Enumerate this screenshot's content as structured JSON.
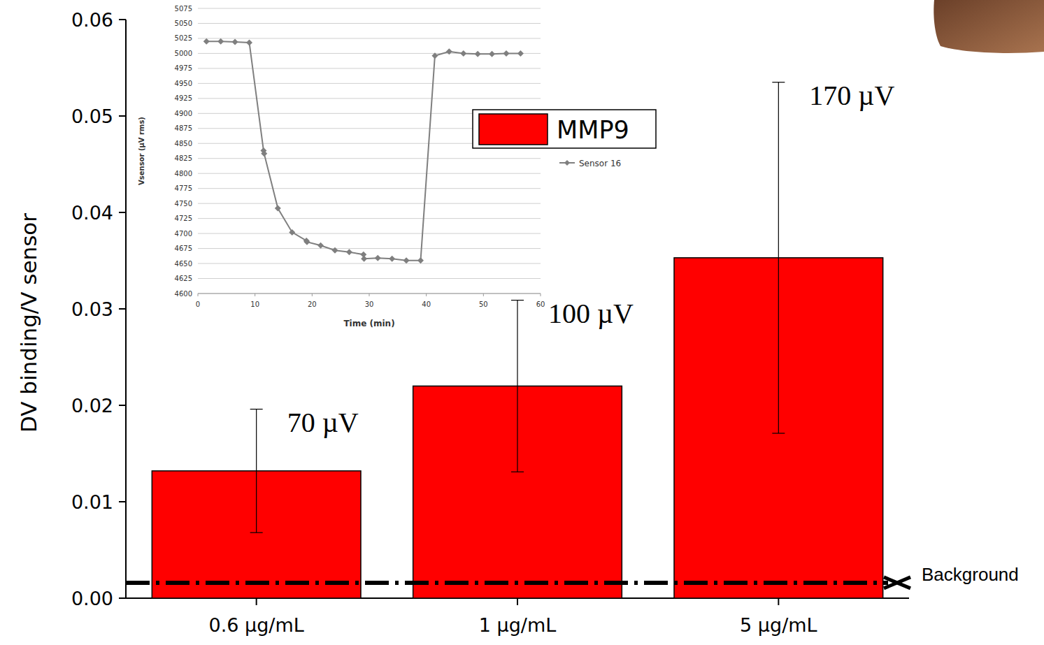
{
  "chart_data": [
    {
      "type": "bar",
      "categories": [
        "0.6 µg/mL",
        "1 µg/mL",
        "5 µg/mL"
      ],
      "series": [
        {
          "name": "MMP9",
          "color": "#ff0000",
          "values": [
            0.0132,
            0.022,
            0.0353
          ],
          "errors": [
            0.0064,
            0.0089,
            0.0182
          ]
        }
      ],
      "y_label": "DV binding/V sensor",
      "ylim": [
        0,
        0.06
      ],
      "yticks": [
        {
          "value": 0,
          "label": "0.00"
        },
        0.01,
        0.02,
        0.03,
        0.04,
        0.05,
        0.06
      ],
      "annotations": [
        "70 µV",
        "100 µV",
        "170 µV"
      ],
      "background": {
        "value": 0.0016,
        "label": "Background"
      },
      "grid": false,
      "legend": "top"
    },
    {
      "type": "line",
      "x": [
        1.5,
        4,
        6.5,
        9,
        11.5,
        11.6,
        14,
        16.5,
        19,
        19.1,
        21.5,
        24,
        26.5,
        29,
        29.1,
        31.5,
        34,
        36.5,
        39,
        41.5,
        44,
        46.5,
        49,
        51.5,
        54,
        56.5
      ],
      "series": [
        {
          "name": "Sensor 16",
          "color": "#7f7f7f",
          "marker": "diamond",
          "values": [
            5020,
            5020,
            5019,
            5018,
            4838,
            4833,
            4742,
            4702,
            4688,
            4686,
            4680,
            4672,
            4669,
            4665,
            4658,
            4659,
            4658,
            4655,
            4655,
            4996,
            5003,
            5000,
            4999,
            4999,
            5000,
            5000
          ]
        }
      ],
      "x_label": "Time (min)",
      "y_label": "Vsensor (µV rms)",
      "xlim": [
        0,
        60
      ],
      "xticks": [
        0,
        10,
        20,
        30,
        40,
        50,
        60
      ],
      "ylim": [
        4600,
        5075
      ],
      "yticks": [
        4600,
        4625,
        4650,
        4675,
        4700,
        4725,
        4750,
        4775,
        4800,
        4825,
        4850,
        4875,
        4900,
        4925,
        4950,
        4975,
        5000,
        5025,
        5050,
        5075
      ],
      "grid": true,
      "legend": "right"
    }
  ]
}
